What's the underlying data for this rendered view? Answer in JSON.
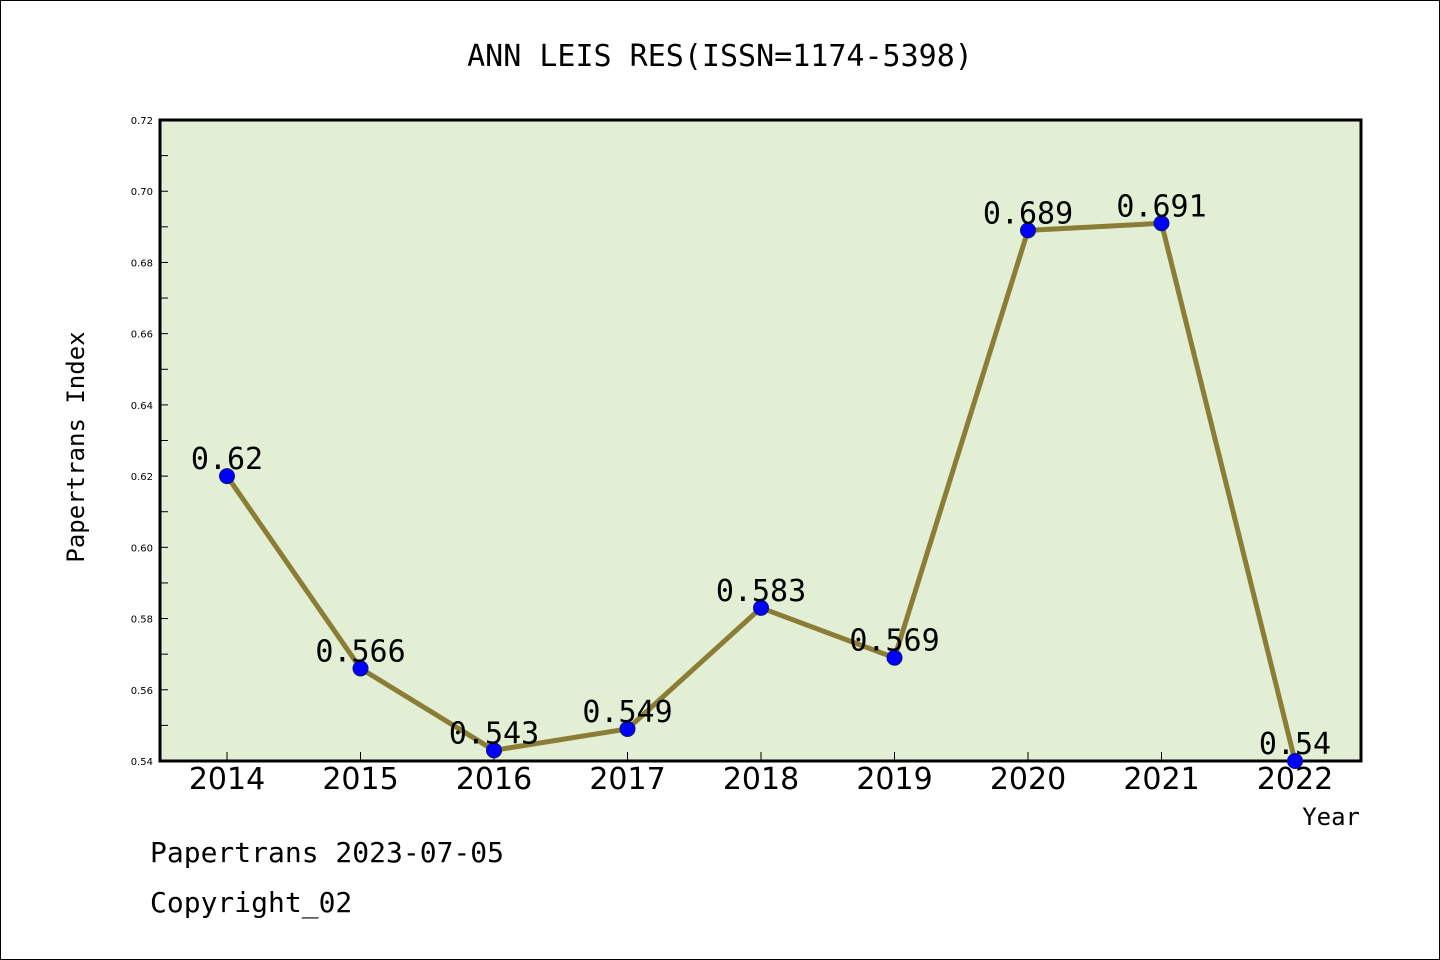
{
  "chart_data": {
    "type": "line",
    "title": "ANN LEIS RES(ISSN=1174-5398)",
    "xlabel": "Year",
    "ylabel": "Papertrans Index",
    "categories": [
      "2014",
      "2015",
      "2016",
      "2017",
      "2018",
      "2019",
      "2020",
      "2021",
      "2022"
    ],
    "series": [
      {
        "values": [
          0.62,
          0.566,
          0.543,
          0.549,
          0.583,
          0.569,
          0.689,
          0.691,
          0.54
        ],
        "labels": [
          "0.62",
          "0.566",
          "0.543",
          "0.549",
          "0.583",
          "0.569",
          "0.689",
          "0.691",
          "0.54"
        ]
      }
    ],
    "ylim": [
      0.54,
      0.72
    ],
    "yticks": [
      "0.54",
      "0.56",
      "0.58",
      "0.60",
      "0.62",
      "0.64",
      "0.66",
      "0.68",
      "0.70",
      "0.72"
    ],
    "grid": false,
    "legend": "none",
    "colors": {
      "plot_background": "#e2efd5",
      "line": "#8b7d35",
      "marker": "#0000ff",
      "marker_edge": "#0a1a6e",
      "axis": "#000000"
    }
  },
  "footer": {
    "date_line": "Papertrans 2023-07-05",
    "copyright_line": "Copyright_02"
  }
}
